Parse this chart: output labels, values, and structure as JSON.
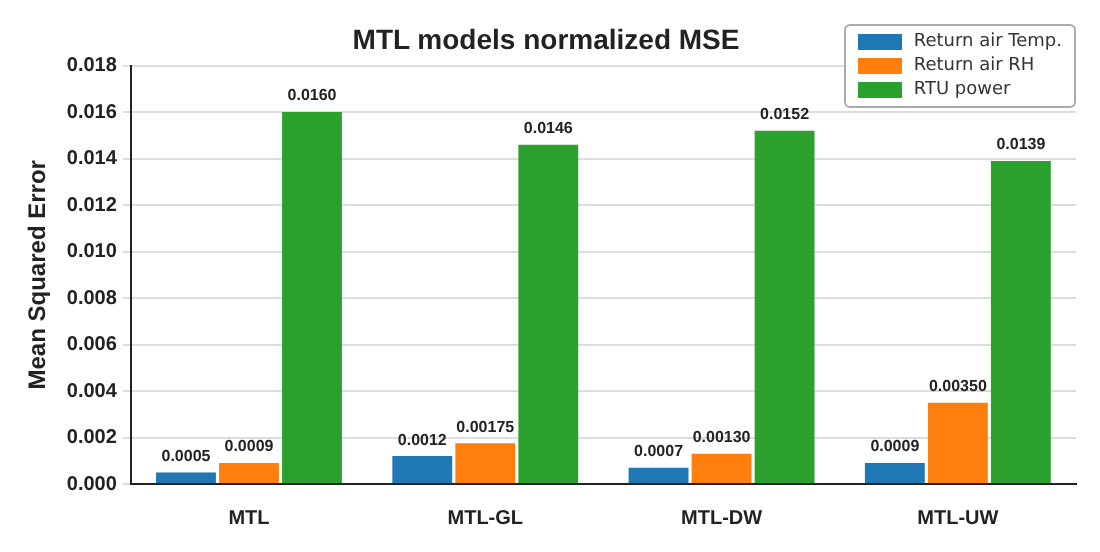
{
  "chart_data": {
    "type": "bar",
    "title": "MTL models normalized MSE",
    "ylabel": "Mean Squared Error",
    "categories": [
      "MTL",
      "MTL-GL",
      "MTL-DW",
      "MTL-UW"
    ],
    "series": [
      {
        "name": "Return air Temp.",
        "color": "#1f77b4",
        "values": [
          0.0005,
          0.0012,
          0.0007,
          0.0009
        ],
        "value_labels": [
          "0.0005",
          "0.0012",
          "0.0007",
          "0.0009"
        ]
      },
      {
        "name": "Return air RH",
        "color": "#ff7f0e",
        "values": [
          0.0009,
          0.00175,
          0.0013,
          0.0035
        ],
        "value_labels": [
          "0.0009",
          "0.00175",
          "0.00130",
          "0.00350"
        ]
      },
      {
        "name": "RTU power",
        "color": "#2ca02c",
        "values": [
          0.016,
          0.0146,
          0.0152,
          0.0139
        ],
        "value_labels": [
          "0.0160",
          "0.0146",
          "0.0152",
          "0.0139"
        ]
      }
    ],
    "ylim": [
      0,
      0.018
    ],
    "yticks": [
      {
        "value": 0,
        "label": "0.000"
      },
      {
        "value": 0.002,
        "label": "0.002"
      },
      {
        "value": 0.004,
        "label": "0.004"
      },
      {
        "value": 0.006,
        "label": "0.006"
      },
      {
        "value": 0.008,
        "label": "0.008"
      },
      {
        "value": 0.01,
        "label": "0.010"
      },
      {
        "value": 0.012,
        "label": "0.012"
      },
      {
        "value": 0.014,
        "label": "0.014"
      },
      {
        "value": 0.016,
        "label": "0.016"
      },
      {
        "value": 0.018,
        "label": "0.018"
      }
    ],
    "grid": "y",
    "legend": "top right"
  }
}
